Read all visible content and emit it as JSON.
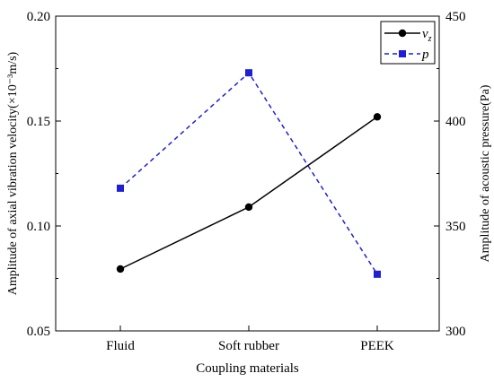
{
  "chart_data": {
    "type": "line",
    "xlabel": "Coupling materials",
    "ylabel_left": "Amplitude of axial vibration velocity(×10⁻³m/s)",
    "ylabel_right": "Amplitude of acoustic pressure(Pa)",
    "categories": [
      "Fluid",
      "Soft rubber",
      "PEEK"
    ],
    "y_left": {
      "lim": [
        0.05,
        0.2
      ],
      "ticks": [
        "0.05",
        "0.10",
        "0.15",
        "0.20"
      ],
      "tick_values": [
        0.05,
        0.1,
        0.15,
        0.2
      ]
    },
    "y_right": {
      "lim": [
        300,
        450
      ],
      "ticks": [
        "300",
        "350",
        "400",
        "450"
      ],
      "tick_values": [
        300,
        350,
        400,
        450
      ]
    },
    "series": [
      {
        "name": "v",
        "name_subscript": "z",
        "axis": "left",
        "values": [
          0.0795,
          0.109,
          0.152
        ],
        "color": "#000000",
        "line": "solid",
        "marker": "circle"
      },
      {
        "name": "p",
        "axis": "right",
        "values": [
          368,
          423,
          327
        ],
        "color": "#1f1fd6",
        "line": "dashed",
        "marker": "square"
      }
    ],
    "legend": "top-right",
    "grid": false
  }
}
